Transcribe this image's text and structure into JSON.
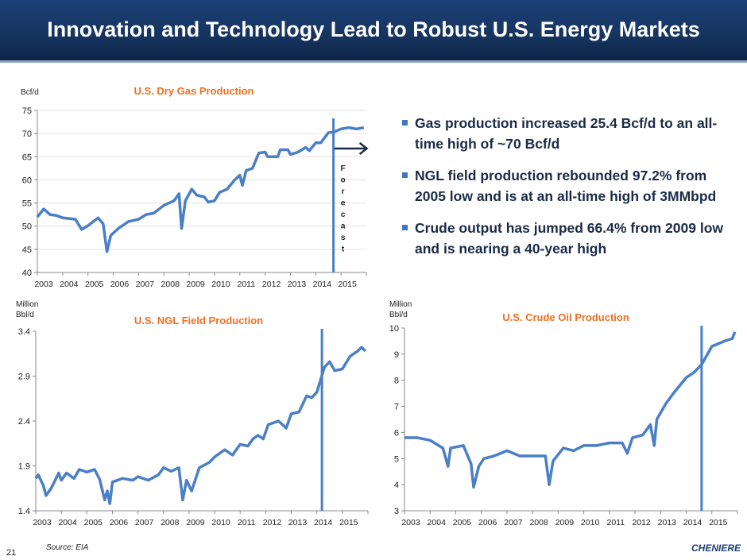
{
  "title": "Innovation and Technology Lead to Robust U.S. Energy Markets",
  "bullets": [
    "Gas production increased 25.4 Bcf/d to an all-time high of ~70 Bcf/d",
    "NGL field production rebounded 97.2% from 2005 low and is at an all-time high of 3MMbpd",
    "Crude output has jumped 66.4% from 2009 low and is nearing a 40-year high"
  ],
  "footer": {
    "page": "21",
    "source": "Source: EIA",
    "logo": "CHENIERE"
  },
  "colors": {
    "line": "#4a7fc6",
    "title_orange": "#f07022",
    "titlebar": "#16345f"
  },
  "chart_data": [
    {
      "type": "line",
      "title": "U.S. Dry Gas Production",
      "ylabel": "Bcf/d",
      "ylim": [
        40,
        75
      ],
      "yticks": [
        40,
        45,
        50,
        55,
        60,
        65,
        70,
        75
      ],
      "xticks": [
        "2003",
        "2004",
        "2005",
        "2006",
        "2007",
        "2008",
        "2009",
        "2010",
        "2011",
        "2012",
        "2013",
        "2014",
        "2015"
      ],
      "annotation": "Forecast",
      "forecast_start": 2014.7,
      "grid": true,
      "x": [
        2003.0,
        2003.25,
        2003.5,
        2003.75,
        2004.0,
        2004.5,
        2004.75,
        2005.0,
        2005.4,
        2005.6,
        2005.75,
        2005.9,
        2006.2,
        2006.6,
        2007.0,
        2007.3,
        2007.6,
        2008.0,
        2008.4,
        2008.6,
        2008.7,
        2008.85,
        2009.1,
        2009.3,
        2009.6,
        2009.75,
        2010.0,
        2010.2,
        2010.5,
        2010.8,
        2011.0,
        2011.1,
        2011.25,
        2011.5,
        2011.75,
        2012.0,
        2012.1,
        2012.5,
        2012.6,
        2012.9,
        2013.0,
        2013.3,
        2013.6,
        2013.75,
        2014.0,
        2014.2,
        2014.5,
        2014.7,
        2015.0,
        2015.3,
        2015.6,
        2015.9
      ],
      "y": [
        52,
        53.7,
        52.5,
        52.3,
        51.8,
        51.5,
        49.3,
        50.1,
        51.8,
        50.5,
        44.5,
        48,
        49.5,
        51,
        51.5,
        52.5,
        52.8,
        54.5,
        55.5,
        57,
        49.5,
        55.5,
        58,
        56.7,
        56.3,
        55.2,
        55.5,
        57.3,
        58,
        60,
        61,
        58.8,
        62,
        62.5,
        65.8,
        66,
        65,
        65,
        66.5,
        66.5,
        65.5,
        66,
        67,
        66.3,
        68,
        68,
        70.2,
        70.3,
        71,
        71.3,
        71,
        71.3
      ]
    },
    {
      "type": "line",
      "title": "U.S. NGL Field Production",
      "ylabel": "Million Bbl/d",
      "ylim": [
        1.4,
        3.4
      ],
      "yticks": [
        1.4,
        1.9,
        2.4,
        2.9,
        3.4
      ],
      "xticks": [
        "2003",
        "2004",
        "2005",
        "2006",
        "2007",
        "2008",
        "2009",
        "2010",
        "2011",
        "2012",
        "2013",
        "2014",
        "2015"
      ],
      "marker_line": 2014.2,
      "grid": false,
      "x": [
        2003.0,
        2003.1,
        2003.3,
        2003.4,
        2003.6,
        2003.9,
        2004.0,
        2004.2,
        2004.5,
        2004.7,
        2005.0,
        2005.3,
        2005.5,
        2005.7,
        2005.8,
        2005.9,
        2006.0,
        2006.4,
        2006.8,
        2007.0,
        2007.4,
        2007.8,
        2008.0,
        2008.3,
        2008.6,
        2008.75,
        2008.9,
        2009.1,
        2009.4,
        2009.8,
        2010.0,
        2010.4,
        2010.7,
        2011.0,
        2011.3,
        2011.5,
        2011.7,
        2011.9,
        2012.1,
        2012.5,
        2012.8,
        2013.0,
        2013.3,
        2013.6,
        2013.8,
        2014.0,
        2014.3,
        2014.5,
        2014.7,
        2015.0,
        2015.3,
        2015.6,
        2015.75,
        2015.9
      ],
      "y": [
        1.76,
        1.8,
        1.68,
        1.57,
        1.65,
        1.82,
        1.74,
        1.82,
        1.76,
        1.86,
        1.83,
        1.86,
        1.75,
        1.52,
        1.62,
        1.48,
        1.72,
        1.76,
        1.74,
        1.78,
        1.74,
        1.8,
        1.88,
        1.84,
        1.88,
        1.52,
        1.74,
        1.62,
        1.88,
        1.94,
        2.0,
        2.08,
        2.02,
        2.14,
        2.12,
        2.2,
        2.24,
        2.2,
        2.36,
        2.4,
        2.32,
        2.48,
        2.5,
        2.68,
        2.66,
        2.72,
        3.0,
        3.06,
        2.96,
        2.98,
        3.12,
        3.18,
        3.22,
        3.18
      ]
    },
    {
      "type": "line",
      "title": "U.S. Crude Oil Production",
      "ylabel": "Million Bbl/d",
      "ylim": [
        3,
        10
      ],
      "yticks": [
        3,
        4,
        5,
        6,
        7,
        8,
        9,
        10
      ],
      "xticks": [
        "2003",
        "2004",
        "2005",
        "2006",
        "2007",
        "2008",
        "2009",
        "2010",
        "2011",
        "2012",
        "2013",
        "2014",
        "2015"
      ],
      "marker_line": 2014.6,
      "grid": false,
      "x": [
        2003,
        2003.5,
        2004,
        2004.5,
        2004.7,
        2004.8,
        2005.3,
        2005.6,
        2005.7,
        2005.9,
        2006.1,
        2006.5,
        2007,
        2007.5,
        2008.0,
        2008.5,
        2008.65,
        2008.8,
        2009.2,
        2009.6,
        2010.0,
        2010.5,
        2011,
        2011.5,
        2011.7,
        2011.9,
        2012.3,
        2012.6,
        2012.75,
        2012.85,
        2013.2,
        2013.5,
        2013.75,
        2014.0,
        2014.3,
        2014.6,
        2015.0,
        2015.5,
        2015.8,
        2015.9
      ],
      "y": [
        5.8,
        5.8,
        5.7,
        5.4,
        4.7,
        5.4,
        5.5,
        4.8,
        3.9,
        4.7,
        5.0,
        5.1,
        5.3,
        5.1,
        5.1,
        5.1,
        4.0,
        4.9,
        5.4,
        5.3,
        5.5,
        5.5,
        5.6,
        5.6,
        5.2,
        5.8,
        5.9,
        6.3,
        5.5,
        6.5,
        7.1,
        7.5,
        7.8,
        8.1,
        8.3,
        8.6,
        9.3,
        9.5,
        9.6,
        9.85
      ]
    }
  ]
}
